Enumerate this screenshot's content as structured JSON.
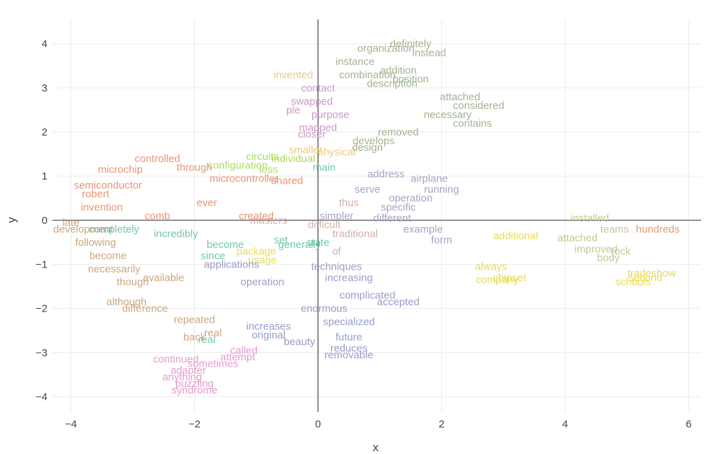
{
  "chart_data": {
    "type": "scatter",
    "mode": "text",
    "xlabel": "x",
    "ylabel": "y",
    "xlim": [
      -4.3,
      6.2
    ],
    "ylim": [
      -4.35,
      4.55
    ],
    "x_ticks": [
      -4,
      -2,
      0,
      2,
      4,
      6
    ],
    "y_ticks": [
      -4,
      -3,
      -2,
      -1,
      0,
      1,
      2,
      3,
      4
    ],
    "x_tick_labels": [
      "−4",
      "−2",
      "0",
      "2",
      "4",
      "6"
    ],
    "y_tick_labels": [
      "−4",
      "−3",
      "−2",
      "−1",
      "0",
      "1",
      "2",
      "3",
      "4"
    ],
    "grid": true,
    "zero_lines": true,
    "legend": "none",
    "colors": {
      "green": "#9aae86",
      "pink": "#c58fc6",
      "orange": "#e88c6a",
      "lime": "#a6d854",
      "teal": "#66c2a5",
      "blue": "#8f95c6",
      "tan": "#c6a074",
      "lavender": "#a09bc0",
      "yellow": "#e5d84a",
      "olive": "#c2c28a",
      "magenta": "#e394c8",
      "gold": "#e5c87a"
    },
    "series": [
      {
        "color": "#9aae86",
        "points": [
          {
            "x": 1.5,
            "y": 4.0,
            "text": "definitely"
          },
          {
            "x": 1.1,
            "y": 3.9,
            "text": "organization"
          },
          {
            "x": 1.8,
            "y": 3.8,
            "text": "instead"
          },
          {
            "x": 0.6,
            "y": 3.6,
            "text": "instance"
          },
          {
            "x": 1.3,
            "y": 3.4,
            "text": "addition"
          },
          {
            "x": 0.8,
            "y": 3.3,
            "text": "combination"
          },
          {
            "x": 1.5,
            "y": 3.2,
            "text": "position"
          },
          {
            "x": 1.2,
            "y": 3.1,
            "text": "description"
          },
          {
            "x": 2.3,
            "y": 2.8,
            "text": "attached"
          },
          {
            "x": 2.6,
            "y": 2.6,
            "text": "considered"
          },
          {
            "x": 2.1,
            "y": 2.4,
            "text": "necessary"
          },
          {
            "x": 2.5,
            "y": 2.2,
            "text": "contains"
          },
          {
            "x": 1.3,
            "y": 2.0,
            "text": "removed"
          },
          {
            "x": 0.9,
            "y": 1.8,
            "text": "develops"
          },
          {
            "x": 0.8,
            "y": 1.65,
            "text": "design"
          }
        ]
      },
      {
        "color": "#c58fc6",
        "points": [
          {
            "x": 0.0,
            "y": 3.0,
            "text": "contact"
          },
          {
            "x": -0.1,
            "y": 2.7,
            "text": "swapped"
          },
          {
            "x": -0.4,
            "y": 2.5,
            "text": "ple"
          },
          {
            "x": 0.2,
            "y": 2.4,
            "text": "purpose"
          },
          {
            "x": 0.0,
            "y": 2.1,
            "text": "mapped"
          },
          {
            "x": -0.1,
            "y": 1.95,
            "text": "closer"
          }
        ]
      },
      {
        "color": "#e5c87a",
        "points": [
          {
            "x": -0.4,
            "y": 3.3,
            "text": "invented"
          },
          {
            "x": -0.2,
            "y": 1.6,
            "text": "smaller"
          },
          {
            "x": 0.3,
            "y": 1.55,
            "text": "physical"
          }
        ]
      },
      {
        "color": "#a6d854",
        "points": [
          {
            "x": -0.9,
            "y": 1.45,
            "text": "circuits"
          },
          {
            "x": -1.3,
            "y": 1.25,
            "text": "configuration"
          },
          {
            "x": -0.4,
            "y": 1.4,
            "text": "individual"
          },
          {
            "x": -0.8,
            "y": 1.15,
            "text": "less"
          }
        ]
      },
      {
        "color": "#66c2a5",
        "points": [
          {
            "x": 0.1,
            "y": 1.2,
            "text": "main"
          },
          {
            "x": -2.3,
            "y": -0.3,
            "text": "incredibly"
          },
          {
            "x": -3.3,
            "y": -0.2,
            "text": "completely"
          },
          {
            "x": -1.5,
            "y": -0.55,
            "text": "become"
          },
          {
            "x": -0.6,
            "y": -0.45,
            "text": "set"
          },
          {
            "x": -0.3,
            "y": -0.55,
            "text": "generally"
          },
          {
            "x": -1.7,
            "y": -0.8,
            "text": "since"
          },
          {
            "x": -1.8,
            "y": -2.7,
            "text": "real"
          },
          {
            "x": 0.0,
            "y": -0.5,
            "text": "state"
          }
        ]
      },
      {
        "color": "#e88c6a",
        "points": [
          {
            "x": -2.6,
            "y": 1.4,
            "text": "controlled"
          },
          {
            "x": -3.2,
            "y": 1.15,
            "text": "microchip"
          },
          {
            "x": -2.0,
            "y": 1.2,
            "text": "through"
          },
          {
            "x": -3.4,
            "y": 0.8,
            "text": "semiconductor"
          },
          {
            "x": -3.6,
            "y": 0.6,
            "text": "robert"
          },
          {
            "x": -3.5,
            "y": 0.3,
            "text": "invention"
          },
          {
            "x": -1.2,
            "y": 0.95,
            "text": "microcontroller"
          },
          {
            "x": -2.6,
            "y": 0.1,
            "text": "comb"
          },
          {
            "x": -1.8,
            "y": 0.4,
            "text": "ever"
          },
          {
            "x": -1.0,
            "y": 0.1,
            "text": "created"
          },
          {
            "x": -0.5,
            "y": 0.9,
            "text": "shared"
          },
          {
            "x": 5.5,
            "y": -0.2,
            "text": "hundreds"
          }
        ]
      },
      {
        "color": "#a09bc0",
        "points": [
          {
            "x": 1.1,
            "y": 1.05,
            "text": "address"
          },
          {
            "x": 1.8,
            "y": 0.95,
            "text": "airplane"
          },
          {
            "x": 2.0,
            "y": 0.7,
            "text": "running"
          },
          {
            "x": 1.5,
            "y": 0.5,
            "text": "operation"
          },
          {
            "x": 1.3,
            "y": 0.3,
            "text": "specific"
          },
          {
            "x": 1.2,
            "y": 0.05,
            "text": "different"
          },
          {
            "x": 1.7,
            "y": -0.2,
            "text": "example"
          },
          {
            "x": 2.0,
            "y": -0.45,
            "text": "form"
          },
          {
            "x": 0.3,
            "y": 0.1,
            "text": "simpler"
          },
          {
            "x": 0.8,
            "y": 0.7,
            "text": "serve"
          }
        ]
      },
      {
        "color": "#d4a7a0",
        "points": [
          {
            "x": 0.1,
            "y": -0.1,
            "text": "difficult"
          },
          {
            "x": 0.6,
            "y": -0.3,
            "text": "traditional"
          },
          {
            "x": 0.3,
            "y": -0.7,
            "text": "of"
          },
          {
            "x": -0.8,
            "y": 0.0,
            "text": "masters"
          },
          {
            "x": 0.5,
            "y": 0.4,
            "text": "thus"
          }
        ]
      },
      {
        "color": "#c6a074",
        "points": [
          {
            "x": -3.8,
            "y": -0.2,
            "text": "development"
          },
          {
            "x": -4.0,
            "y": -0.05,
            "text": "late"
          },
          {
            "x": -3.6,
            "y": -0.5,
            "text": "following"
          },
          {
            "x": -3.4,
            "y": -0.8,
            "text": "become"
          },
          {
            "x": -3.3,
            "y": -1.1,
            "text": "necessarily"
          },
          {
            "x": -3.0,
            "y": -1.4,
            "text": "though"
          },
          {
            "x": -3.1,
            "y": -1.85,
            "text": "although"
          },
          {
            "x": -2.8,
            "y": -2.0,
            "text": "difference"
          },
          {
            "x": -2.0,
            "y": -2.25,
            "text": "repeated"
          },
          {
            "x": -1.7,
            "y": -2.55,
            "text": "real"
          },
          {
            "x": -2.0,
            "y": -2.65,
            "text": "back"
          },
          {
            "x": -2.5,
            "y": -1.3,
            "text": "available"
          }
        ]
      },
      {
        "color": "#e5d84a",
        "points": [
          {
            "x": -1.0,
            "y": -0.7,
            "text": "package"
          },
          {
            "x": -0.9,
            "y": -0.9,
            "text": "usage"
          },
          {
            "x": 2.8,
            "y": -1.05,
            "text": "always"
          },
          {
            "x": 2.9,
            "y": -1.35,
            "text": "company"
          },
          {
            "x": 3.1,
            "y": -1.3,
            "text": "chipset"
          },
          {
            "x": 3.2,
            "y": -0.35,
            "text": "additional"
          },
          {
            "x": 5.4,
            "y": -1.2,
            "text": "tradeshow"
          },
          {
            "x": 5.1,
            "y": -1.4,
            "text": "schools"
          },
          {
            "x": 5.3,
            "y": -1.3,
            "text": "second"
          }
        ]
      },
      {
        "color": "#8f95c6",
        "points": [
          {
            "x": 0.3,
            "y": -1.05,
            "text": "techniques"
          },
          {
            "x": 0.5,
            "y": -1.3,
            "text": "increasing"
          },
          {
            "x": -1.4,
            "y": -1.0,
            "text": "applications"
          },
          {
            "x": -0.9,
            "y": -1.4,
            "text": "operation"
          },
          {
            "x": 0.8,
            "y": -1.7,
            "text": "complicated"
          },
          {
            "x": 1.3,
            "y": -1.85,
            "text": "accepted"
          },
          {
            "x": 0.1,
            "y": -2.0,
            "text": "enormous"
          },
          {
            "x": 0.5,
            "y": -2.3,
            "text": "specialized"
          },
          {
            "x": -0.8,
            "y": -2.4,
            "text": "increases"
          },
          {
            "x": -0.8,
            "y": -2.6,
            "text": "original"
          },
          {
            "x": 0.5,
            "y": -2.65,
            "text": "future"
          },
          {
            "x": 0.5,
            "y": -2.9,
            "text": "reduces"
          },
          {
            "x": 0.5,
            "y": -3.05,
            "text": "removable"
          },
          {
            "x": -0.3,
            "y": -2.75,
            "text": "beauty"
          }
        ]
      },
      {
        "color": "#c2c28a",
        "points": [
          {
            "x": 4.4,
            "y": 0.05,
            "text": "installed"
          },
          {
            "x": 4.8,
            "y": -0.2,
            "text": "teams"
          },
          {
            "x": 4.2,
            "y": -0.4,
            "text": "attached"
          },
          {
            "x": 4.5,
            "y": -0.65,
            "text": "improved"
          },
          {
            "x": 4.9,
            "y": -0.7,
            "text": "rock"
          },
          {
            "x": 4.7,
            "y": -0.85,
            "text": "body"
          }
        ]
      },
      {
        "color": "#e394c8",
        "points": [
          {
            "x": -2.3,
            "y": -3.15,
            "text": "continued"
          },
          {
            "x": -1.3,
            "y": -3.1,
            "text": "attempt"
          },
          {
            "x": -1.7,
            "y": -3.25,
            "text": "sometimes"
          },
          {
            "x": -1.2,
            "y": -2.95,
            "text": "called"
          },
          {
            "x": -2.1,
            "y": -3.4,
            "text": "adapter"
          },
          {
            "x": -2.2,
            "y": -3.55,
            "text": "anything"
          },
          {
            "x": -2.0,
            "y": -3.7,
            "text": "puzzling"
          },
          {
            "x": -2.0,
            "y": -3.85,
            "text": "syndrome"
          }
        ]
      }
    ]
  }
}
